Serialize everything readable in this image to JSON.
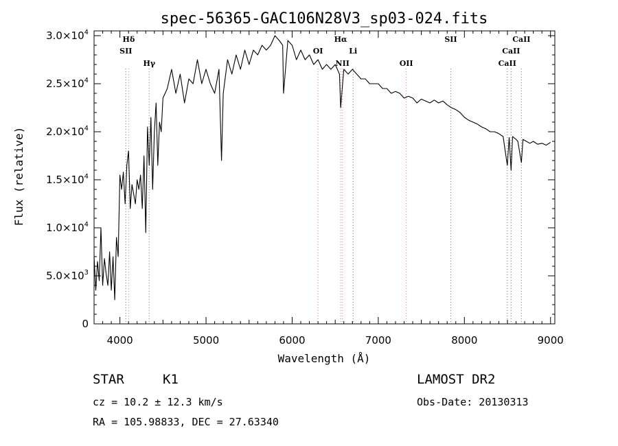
{
  "chart_data": {
    "type": "line",
    "title": "spec-56365-GAC106N28V3_sp03-024.fits",
    "xlabel": "Wavelength (Å)",
    "ylabel": "Flux (relative)",
    "xlim": [
      3700,
      9050
    ],
    "ylim": [
      0,
      30500
    ],
    "x_ticks": [
      4000,
      5000,
      6000,
      7000,
      8000,
      9000
    ],
    "y_ticks": [
      {
        "value": 0,
        "mantissa": "0",
        "exp": ""
      },
      {
        "value": 5000,
        "mantissa": "5.0×10",
        "exp": "3"
      },
      {
        "value": 10000,
        "mantissa": "1.0×10",
        "exp": "4"
      },
      {
        "value": 15000,
        "mantissa": "1.5×10",
        "exp": "4"
      },
      {
        "value": 20000,
        "mantissa": "2.0×10",
        "exp": "4"
      },
      {
        "value": 25000,
        "mantissa": "2.5×10",
        "exp": "4"
      },
      {
        "value": 30000,
        "mantissa": "3.0×10",
        "exp": "4"
      }
    ],
    "series": [
      {
        "x": [
          3700,
          3720,
          3740,
          3760,
          3780,
          3800,
          3820,
          3840,
          3860,
          3880,
          3900,
          3920,
          3940,
          3960,
          3980,
          4000,
          4020,
          4040,
          4060,
          4080,
          4100,
          4120,
          4140,
          4160,
          4180,
          4200,
          4220,
          4240,
          4260,
          4280,
          4300,
          4320,
          4340,
          4360,
          4380,
          4400,
          4420,
          4440,
          4460,
          4480,
          4500,
          4550,
          4600,
          4650,
          4700,
          4750,
          4800,
          4850,
          4900,
          4950,
          5000,
          5050,
          5100,
          5150,
          5180,
          5200,
          5250,
          5300,
          5350,
          5400,
          5450,
          5500,
          5550,
          5600,
          5650,
          5700,
          5750,
          5800,
          5850,
          5890,
          5900,
          5950,
          6000,
          6050,
          6100,
          6150,
          6200,
          6250,
          6300,
          6350,
          6400,
          6450,
          6500,
          6550,
          6563,
          6600,
          6650,
          6700,
          6750,
          6800,
          6850,
          6900,
          6950,
          7000,
          7050,
          7100,
          7150,
          7200,
          7250,
          7300,
          7350,
          7400,
          7450,
          7500,
          7550,
          7600,
          7650,
          7700,
          7750,
          7800,
          7850,
          7900,
          7950,
          8000,
          8050,
          8100,
          8150,
          8200,
          8250,
          8300,
          8350,
          8400,
          8450,
          8498,
          8520,
          8542,
          8560,
          8600,
          8620,
          8662,
          8680,
          8720,
          8760,
          8800,
          8850,
          8900,
          8950,
          9000
        ],
        "y": [
          7000,
          3500,
          6500,
          4500,
          10000,
          4000,
          6800,
          5200,
          4000,
          7500,
          3500,
          7000,
          2500,
          9000,
          7000,
          15500,
          14000,
          15800,
          12500,
          16500,
          18000,
          12000,
          14500,
          13500,
          12500,
          15000,
          14000,
          15500,
          12000,
          17500,
          9500,
          20500,
          16500,
          21500,
          14000,
          20000,
          23000,
          16500,
          21000,
          20000,
          23500,
          24500,
          26500,
          24000,
          26000,
          23000,
          25500,
          25000,
          27500,
          25000,
          26500,
          25000,
          24000,
          26500,
          17000,
          24000,
          27500,
          26000,
          28000,
          26500,
          28500,
          27000,
          28500,
          28000,
          29000,
          28500,
          29000,
          30000,
          29500,
          29000,
          24000,
          29500,
          29000,
          27500,
          28500,
          27500,
          28000,
          27000,
          27500,
          26500,
          27000,
          26500,
          27000,
          26000,
          22500,
          26500,
          26000,
          26500,
          26000,
          25500,
          25500,
          25000,
          25000,
          25000,
          24500,
          24500,
          24000,
          24200,
          24000,
          23500,
          23700,
          23500,
          23000,
          23400,
          23200,
          23000,
          23300,
          23000,
          23200,
          22800,
          22500,
          22300,
          22000,
          21500,
          21200,
          21000,
          20800,
          20500,
          20300,
          20000,
          20000,
          19800,
          19500,
          16500,
          19400,
          16000,
          19500,
          19200,
          19000,
          16800,
          19200,
          19000,
          18800,
          19000,
          18700,
          18800,
          18600,
          18900
        ]
      }
    ],
    "spectral_lines": [
      {
        "label": "Hδ",
        "wavelength": 4102,
        "color": "#e07070",
        "row": 0
      },
      {
        "label": "SII",
        "wavelength": 4069,
        "color": "#707070",
        "row": 1
      },
      {
        "label": "Hγ",
        "wavelength": 4340,
        "color": "#707070",
        "row": 2
      },
      {
        "label": "OI",
        "wavelength": 6300,
        "color": "#e07070",
        "row": 1
      },
      {
        "label": "Hα",
        "wavelength": 6563,
        "color": "#e07070",
        "row": 0
      },
      {
        "label": "NII",
        "wavelength": 6584,
        "color": "#e07070",
        "row": 2
      },
      {
        "label": "Li",
        "wavelength": 6708,
        "color": "#707070",
        "row": 1
      },
      {
        "label": "OII",
        "wavelength": 7325,
        "color": "#e07070",
        "row": 2
      },
      {
        "label": "SII",
        "wavelength": 7842,
        "color": "#707070",
        "row": 0
      },
      {
        "label": "CaII",
        "wavelength": 8662,
        "color": "#707070",
        "row": 0
      },
      {
        "label": "CaII",
        "wavelength": 8542,
        "color": "#707070",
        "row": 1
      },
      {
        "label": "CaII",
        "wavelength": 8498,
        "color": "#707070",
        "row": 2
      }
    ]
  },
  "info": {
    "object_class": "STAR",
    "subclass": "K1",
    "survey": "LAMOST DR2",
    "redshift": "cz = 10.2 ± 12.3 km/s",
    "obs_date": "Obs-Date: 20130313",
    "coords": "RA = 105.98833, DEC =  27.63340"
  }
}
